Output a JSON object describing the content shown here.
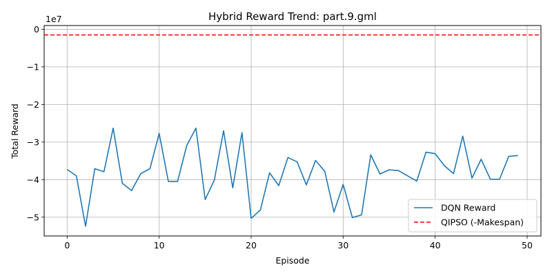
{
  "chart_data": {
    "type": "line",
    "title": "Hybrid Reward Trend: part.9.gml",
    "xlabel": "Episode",
    "ylabel": "Total Reward",
    "y_offset_label": "1e7",
    "xlim": [
      -2.5,
      51.5
    ],
    "ylim": [
      -5.5,
      0.1
    ],
    "y_unit_multiplier": 10000000,
    "xticks": [
      0,
      10,
      20,
      30,
      40,
      50
    ],
    "yticks": [
      0,
      -1,
      -2,
      -3,
      -4,
      -5
    ],
    "xtick_labels": [
      "0",
      "10",
      "20",
      "30",
      "40",
      "50"
    ],
    "ytick_labels": [
      "0",
      "−1",
      "−2",
      "−3",
      "−4",
      "−5"
    ],
    "grid": true,
    "legend_position": "bottom-right",
    "series": [
      {
        "name": "DQN Reward",
        "color": "#1f77b4",
        "style": "solid",
        "x": [
          0,
          1,
          2,
          3,
          4,
          5,
          6,
          7,
          8,
          9,
          10,
          11,
          12,
          13,
          14,
          15,
          16,
          17,
          18,
          19,
          20,
          21,
          22,
          23,
          24,
          25,
          26,
          27,
          28,
          29,
          30,
          31,
          32,
          33,
          34,
          35,
          36,
          37,
          38,
          39,
          40,
          41,
          42,
          43,
          44,
          45,
          46,
          47,
          48,
          49
        ],
        "y": [
          -3.73,
          -3.9,
          -5.24,
          -3.71,
          -3.79,
          -2.63,
          -4.1,
          -4.29,
          -3.84,
          -3.71,
          -2.77,
          -4.05,
          -4.05,
          -3.09,
          -2.63,
          -4.53,
          -4.01,
          -2.7,
          -4.22,
          -2.75,
          -5.03,
          -4.81,
          -3.82,
          -4.16,
          -3.41,
          -3.53,
          -4.14,
          -3.49,
          -3.78,
          -4.86,
          -4.13,
          -5.01,
          -4.94,
          -3.34,
          -3.85,
          -3.74,
          -3.76,
          -3.9,
          -4.04,
          -3.27,
          -3.31,
          -3.63,
          -3.84,
          -2.84,
          -3.96,
          -3.46,
          -3.99,
          -3.99,
          -3.38,
          -3.36
        ]
      },
      {
        "name": "QIPSO (-Makespan)",
        "color": "#ff0000",
        "style": "dashed",
        "y_const": -0.15
      }
    ]
  }
}
